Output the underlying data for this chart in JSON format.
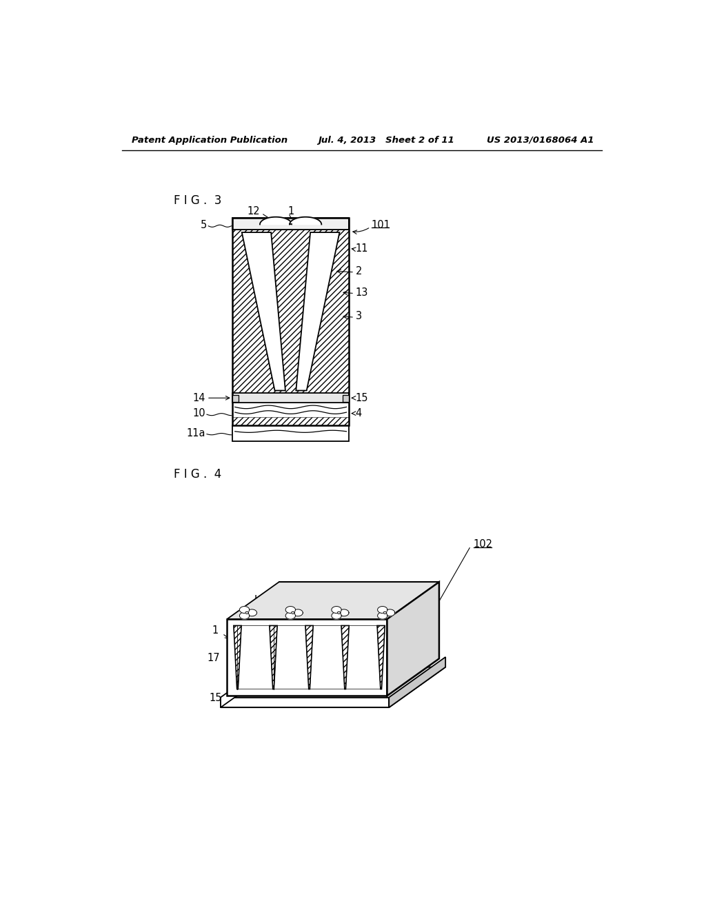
{
  "background_color": "#ffffff",
  "line_color": "#000000",
  "header_left": "Patent Application Publication",
  "header_center": "Jul. 4, 2013   Sheet 2 of 11",
  "header_right": "US 2013/0168064 A1",
  "fig3_label": "F I G .  3",
  "fig4_label": "F I G .  4",
  "fig3_ref": "101",
  "fig4_ref": "102"
}
